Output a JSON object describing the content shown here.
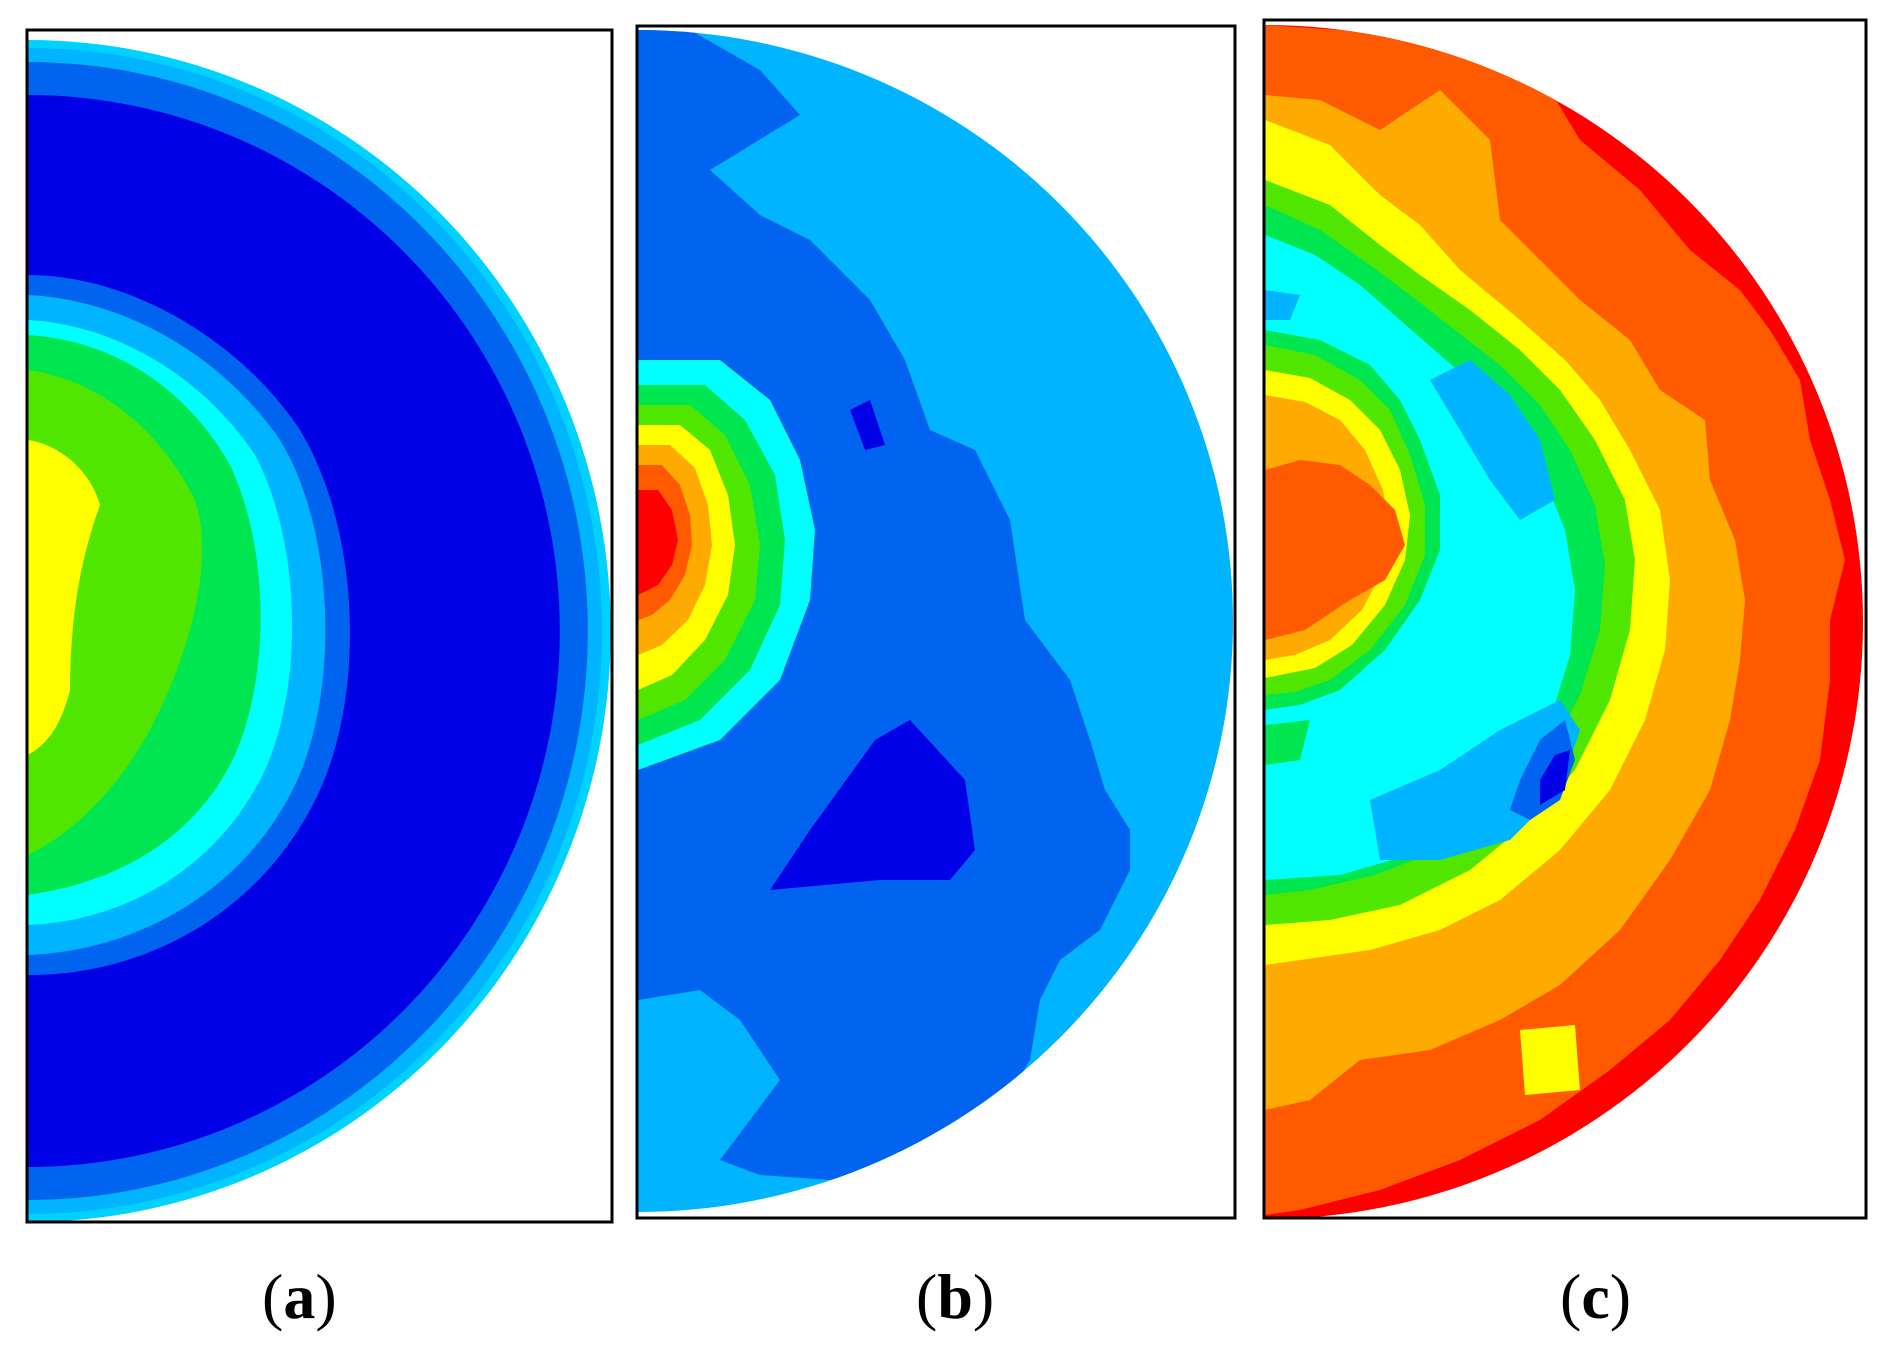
{
  "panels": [
    {
      "id": "a",
      "open": "(",
      "label": "a",
      "close": ")"
    },
    {
      "id": "b",
      "open": "(",
      "label": "b",
      "close": ")"
    },
    {
      "id": "c",
      "open": "(",
      "label": "c",
      "close": ")"
    }
  ],
  "colors": {
    "deep_blue": "#0000e6",
    "mid_blue": "#0064f0",
    "light_blue": "#00b4ff",
    "cyan": "#00ffff",
    "spring_green": "#00e650",
    "green": "#50e600",
    "yellow": "#ffff00",
    "orange": "#ffaa00",
    "dark_orange": "#ff5a00",
    "red": "#ff0000",
    "frame": "#000000"
  }
}
